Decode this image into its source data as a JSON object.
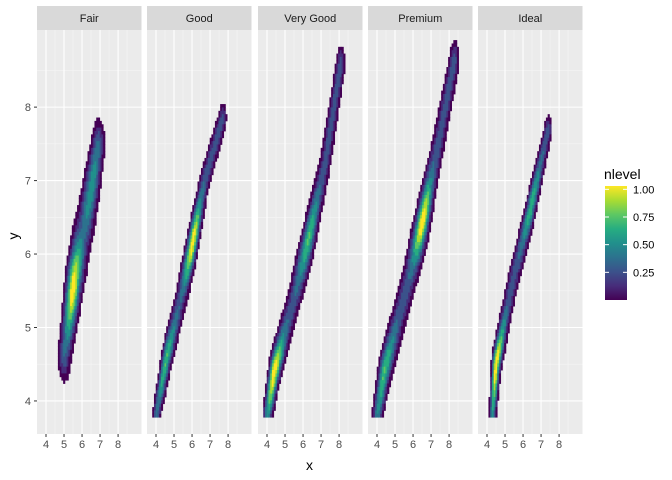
{
  "chart_data": {
    "type": "density_2d_filled",
    "facets": [
      "Fair",
      "Good",
      "Very Good",
      "Premium",
      "Ideal"
    ],
    "xlabel": "x",
    "ylabel": "y",
    "xlim": [
      3.5,
      9.3
    ],
    "ylim": [
      3.55,
      9.05
    ],
    "xticks": [
      4,
      5,
      6,
      7,
      8
    ],
    "yticks": [
      4,
      5,
      6,
      7,
      8
    ],
    "grid": true,
    "legend": {
      "title": "nlevel",
      "position": "right",
      "ticks": [
        "0.25",
        "0.50",
        "0.75",
        "1.00"
      ],
      "tick_values": [
        0.25,
        0.5,
        0.75,
        1.0
      ],
      "range": [
        0.0,
        1.03
      ]
    },
    "colors": [
      "#440154",
      "#472D7B",
      "#3B528B",
      "#2C728E",
      "#21908C",
      "#27AD81",
      "#5DC863",
      "#AADC32",
      "#FDE725"
    ],
    "panels": [
      {
        "facet": "Fair",
        "ridge": [
          [
            5.0,
            4.6
          ],
          [
            5.6,
            5.7
          ],
          [
            6.2,
            6.5
          ],
          [
            6.9,
            7.5
          ]
        ],
        "peak": [
          5.5,
          5.55
        ],
        "secondary_peak": [
          6.9,
          6.6
        ],
        "ridge_width": 0.62,
        "tail_cut": 0.0
      },
      {
        "facet": "Good",
        "ridge": [
          [
            4.0,
            3.8
          ],
          [
            4.6,
            4.6
          ],
          [
            5.2,
            5.2
          ],
          [
            5.9,
            6.0
          ],
          [
            6.7,
            7.0
          ],
          [
            7.7,
            7.85
          ]
        ],
        "peak": [
          6.1,
          6.1
        ],
        "secondary_peak": [
          4.5,
          4.6
        ],
        "ridge_width": 0.36,
        "tail_cut": 0.12
      },
      {
        "facet": "Very Good",
        "ridge": [
          [
            4.0,
            3.8
          ],
          [
            4.4,
            4.4
          ],
          [
            5.4,
            5.3
          ],
          [
            6.3,
            6.2
          ],
          [
            7.2,
            7.2
          ],
          [
            8.1,
            8.6
          ]
        ],
        "peak": [
          4.4,
          4.4
        ],
        "secondary_peak": [
          6.3,
          6.2
        ],
        "ridge_width": 0.42,
        "tail_cut": 0.15
      },
      {
        "facet": "Premium",
        "ridge": [
          [
            4.0,
            3.8
          ],
          [
            4.4,
            4.4
          ],
          [
            5.5,
            5.4
          ],
          [
            6.5,
            6.4
          ],
          [
            7.4,
            7.5
          ],
          [
            8.3,
            8.65
          ]
        ],
        "peak": [
          6.5,
          6.45
        ],
        "secondary_peak": [
          4.4,
          4.4
        ],
        "ridge_width": 0.46,
        "tail_cut": 0.15
      },
      {
        "facet": "Ideal",
        "ridge": [
          [
            4.3,
            3.8
          ],
          [
            4.5,
            4.5
          ],
          [
            5.4,
            5.6
          ],
          [
            6.4,
            6.6
          ],
          [
            7.4,
            7.7
          ]
        ],
        "peak": [
          4.5,
          4.5
        ],
        "secondary_peak": [
          6.6,
          6.5
        ],
        "ridge_width": 0.34,
        "tail_cut": 0.0
      }
    ]
  }
}
